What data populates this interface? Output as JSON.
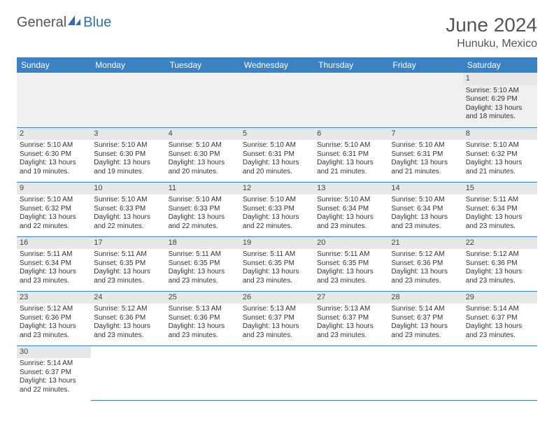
{
  "logo": {
    "general": "General",
    "blue": "Blue"
  },
  "title": "June 2024",
  "location": "Hunuku, Mexico",
  "colors": {
    "header_bg": "#3b82c4",
    "header_text": "#ffffff",
    "daynum_bg": "#e8e8e8",
    "border": "#3b82c4",
    "text": "#333333",
    "logo_blue": "#2f6fb0"
  },
  "weekdays": [
    "Sunday",
    "Monday",
    "Tuesday",
    "Wednesday",
    "Thursday",
    "Friday",
    "Saturday"
  ],
  "weeks": [
    [
      null,
      null,
      null,
      null,
      null,
      null,
      {
        "n": "1",
        "sr": "Sunrise: 5:10 AM",
        "ss": "Sunset: 6:29 PM",
        "dl": "Daylight: 13 hours and 18 minutes."
      }
    ],
    [
      {
        "n": "2",
        "sr": "Sunrise: 5:10 AM",
        "ss": "Sunset: 6:30 PM",
        "dl": "Daylight: 13 hours and 19 minutes."
      },
      {
        "n": "3",
        "sr": "Sunrise: 5:10 AM",
        "ss": "Sunset: 6:30 PM",
        "dl": "Daylight: 13 hours and 19 minutes."
      },
      {
        "n": "4",
        "sr": "Sunrise: 5:10 AM",
        "ss": "Sunset: 6:30 PM",
        "dl": "Daylight: 13 hours and 20 minutes."
      },
      {
        "n": "5",
        "sr": "Sunrise: 5:10 AM",
        "ss": "Sunset: 6:31 PM",
        "dl": "Daylight: 13 hours and 20 minutes."
      },
      {
        "n": "6",
        "sr": "Sunrise: 5:10 AM",
        "ss": "Sunset: 6:31 PM",
        "dl": "Daylight: 13 hours and 21 minutes."
      },
      {
        "n": "7",
        "sr": "Sunrise: 5:10 AM",
        "ss": "Sunset: 6:31 PM",
        "dl": "Daylight: 13 hours and 21 minutes."
      },
      {
        "n": "8",
        "sr": "Sunrise: 5:10 AM",
        "ss": "Sunset: 6:32 PM",
        "dl": "Daylight: 13 hours and 21 minutes."
      }
    ],
    [
      {
        "n": "9",
        "sr": "Sunrise: 5:10 AM",
        "ss": "Sunset: 6:32 PM",
        "dl": "Daylight: 13 hours and 22 minutes."
      },
      {
        "n": "10",
        "sr": "Sunrise: 5:10 AM",
        "ss": "Sunset: 6:33 PM",
        "dl": "Daylight: 13 hours and 22 minutes."
      },
      {
        "n": "11",
        "sr": "Sunrise: 5:10 AM",
        "ss": "Sunset: 6:33 PM",
        "dl": "Daylight: 13 hours and 22 minutes."
      },
      {
        "n": "12",
        "sr": "Sunrise: 5:10 AM",
        "ss": "Sunset: 6:33 PM",
        "dl": "Daylight: 13 hours and 22 minutes."
      },
      {
        "n": "13",
        "sr": "Sunrise: 5:10 AM",
        "ss": "Sunset: 6:34 PM",
        "dl": "Daylight: 13 hours and 23 minutes."
      },
      {
        "n": "14",
        "sr": "Sunrise: 5:10 AM",
        "ss": "Sunset: 6:34 PM",
        "dl": "Daylight: 13 hours and 23 minutes."
      },
      {
        "n": "15",
        "sr": "Sunrise: 5:11 AM",
        "ss": "Sunset: 6:34 PM",
        "dl": "Daylight: 13 hours and 23 minutes."
      }
    ],
    [
      {
        "n": "16",
        "sr": "Sunrise: 5:11 AM",
        "ss": "Sunset: 6:34 PM",
        "dl": "Daylight: 13 hours and 23 minutes."
      },
      {
        "n": "17",
        "sr": "Sunrise: 5:11 AM",
        "ss": "Sunset: 6:35 PM",
        "dl": "Daylight: 13 hours and 23 minutes."
      },
      {
        "n": "18",
        "sr": "Sunrise: 5:11 AM",
        "ss": "Sunset: 6:35 PM",
        "dl": "Daylight: 13 hours and 23 minutes."
      },
      {
        "n": "19",
        "sr": "Sunrise: 5:11 AM",
        "ss": "Sunset: 6:35 PM",
        "dl": "Daylight: 13 hours and 23 minutes."
      },
      {
        "n": "20",
        "sr": "Sunrise: 5:11 AM",
        "ss": "Sunset: 6:35 PM",
        "dl": "Daylight: 13 hours and 23 minutes."
      },
      {
        "n": "21",
        "sr": "Sunrise: 5:12 AM",
        "ss": "Sunset: 6:36 PM",
        "dl": "Daylight: 13 hours and 23 minutes."
      },
      {
        "n": "22",
        "sr": "Sunrise: 5:12 AM",
        "ss": "Sunset: 6:36 PM",
        "dl": "Daylight: 13 hours and 23 minutes."
      }
    ],
    [
      {
        "n": "23",
        "sr": "Sunrise: 5:12 AM",
        "ss": "Sunset: 6:36 PM",
        "dl": "Daylight: 13 hours and 23 minutes."
      },
      {
        "n": "24",
        "sr": "Sunrise: 5:12 AM",
        "ss": "Sunset: 6:36 PM",
        "dl": "Daylight: 13 hours and 23 minutes."
      },
      {
        "n": "25",
        "sr": "Sunrise: 5:13 AM",
        "ss": "Sunset: 6:36 PM",
        "dl": "Daylight: 13 hours and 23 minutes."
      },
      {
        "n": "26",
        "sr": "Sunrise: 5:13 AM",
        "ss": "Sunset: 6:37 PM",
        "dl": "Daylight: 13 hours and 23 minutes."
      },
      {
        "n": "27",
        "sr": "Sunrise: 5:13 AM",
        "ss": "Sunset: 6:37 PM",
        "dl": "Daylight: 13 hours and 23 minutes."
      },
      {
        "n": "28",
        "sr": "Sunrise: 5:14 AM",
        "ss": "Sunset: 6:37 PM",
        "dl": "Daylight: 13 hours and 23 minutes."
      },
      {
        "n": "29",
        "sr": "Sunrise: 5:14 AM",
        "ss": "Sunset: 6:37 PM",
        "dl": "Daylight: 13 hours and 23 minutes."
      }
    ],
    [
      {
        "n": "30",
        "sr": "Sunrise: 5:14 AM",
        "ss": "Sunset: 6:37 PM",
        "dl": "Daylight: 13 hours and 22 minutes."
      },
      null,
      null,
      null,
      null,
      null,
      null
    ]
  ]
}
